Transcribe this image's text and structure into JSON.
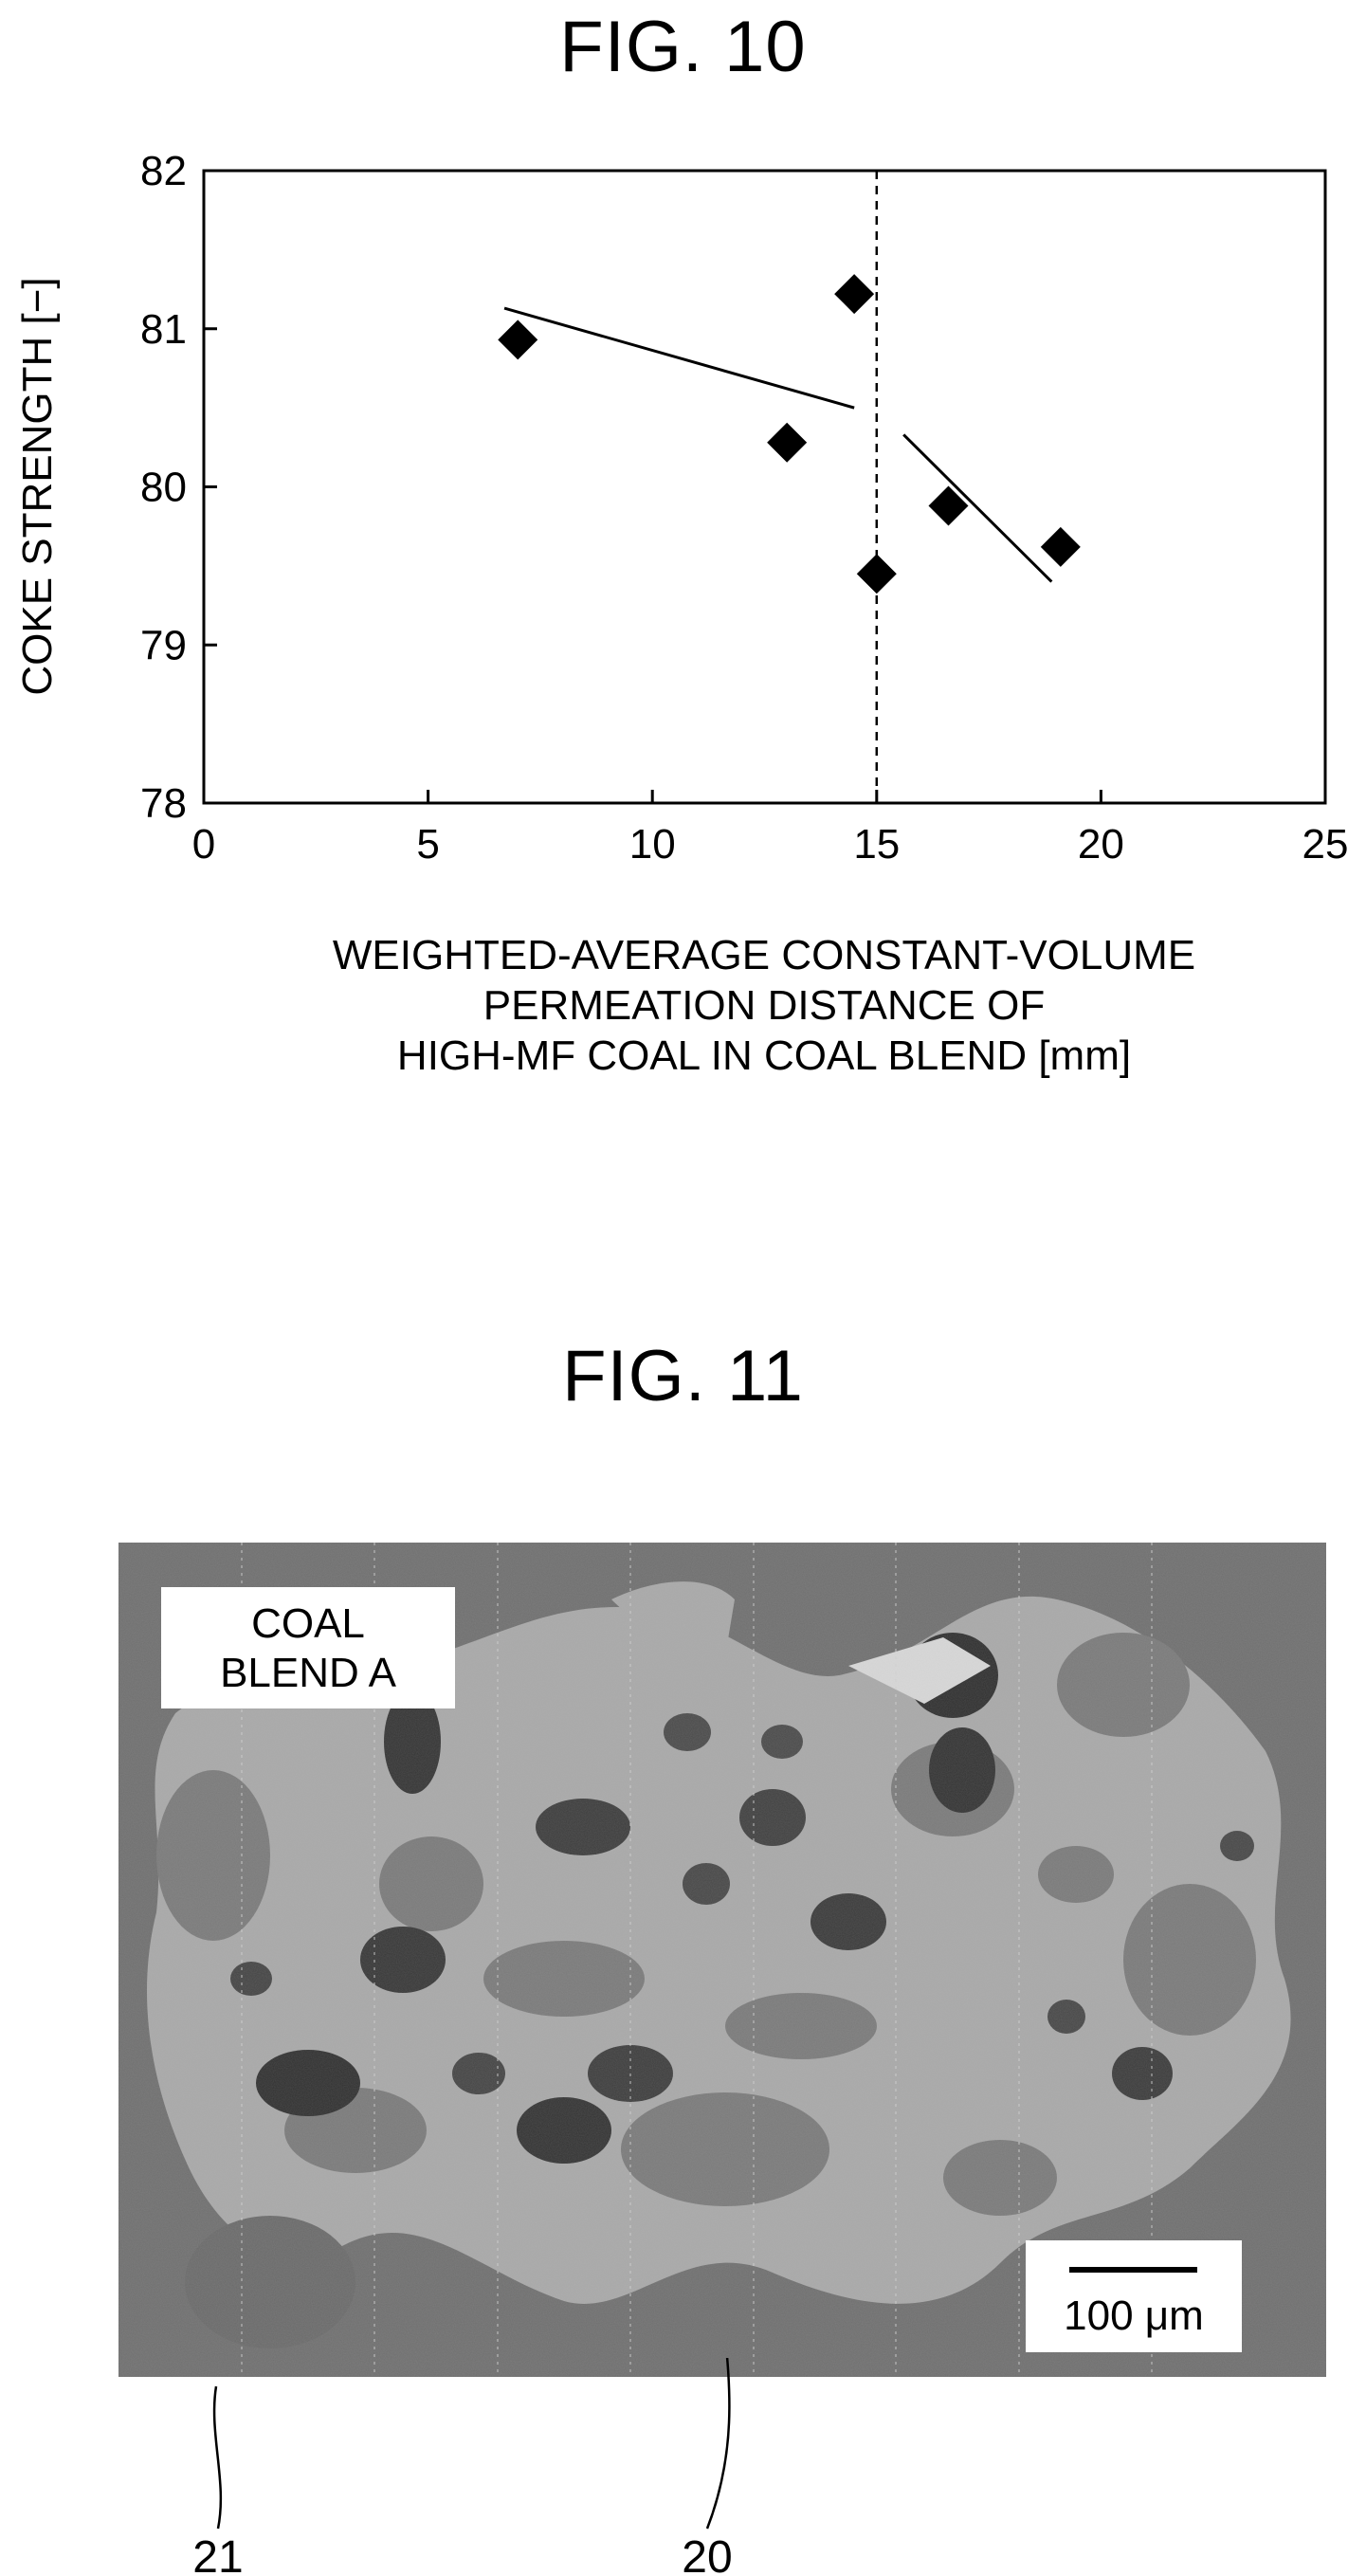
{
  "fig10": {
    "title": "FIG. 10",
    "chart_data": {
      "type": "scatter",
      "title": "",
      "xlabel_lines": [
        "WEIGHTED-AVERAGE CONSTANT-VOLUME",
        "PERMEATION DISTANCE OF",
        "HIGH-MF COAL IN COAL BLEND [mm]"
      ],
      "ylabel": "COKE STRENGTH [−]",
      "xlim": [
        0,
        25
      ],
      "ylim": [
        78,
        82
      ],
      "xticks": [
        0,
        5,
        10,
        15,
        20,
        25
      ],
      "yticks": [
        78,
        79,
        80,
        81,
        82
      ],
      "grid": false,
      "marker": "diamond",
      "points": [
        {
          "x": 7.0,
          "y": 80.93
        },
        {
          "x": 13.0,
          "y": 80.28
        },
        {
          "x": 14.5,
          "y": 81.22
        },
        {
          "x": 15.0,
          "y": 79.45
        },
        {
          "x": 16.6,
          "y": 79.88
        },
        {
          "x": 19.1,
          "y": 79.62
        }
      ],
      "trend_lines": [
        {
          "x": [
            6.7,
            14.5
          ],
          "y": [
            81.13,
            80.5
          ]
        },
        {
          "x": [
            15.6,
            18.9
          ],
          "y": [
            80.33,
            79.4
          ]
        }
      ],
      "reference_line": {
        "orientation": "vertical",
        "x": 15,
        "style": "dashed"
      }
    }
  },
  "fig11": {
    "title": "FIG. 11",
    "label_lines": [
      "COAL",
      "BLEND A"
    ],
    "scale_bar_label": "100 μm",
    "ref_numbers": [
      "21",
      "20"
    ]
  }
}
